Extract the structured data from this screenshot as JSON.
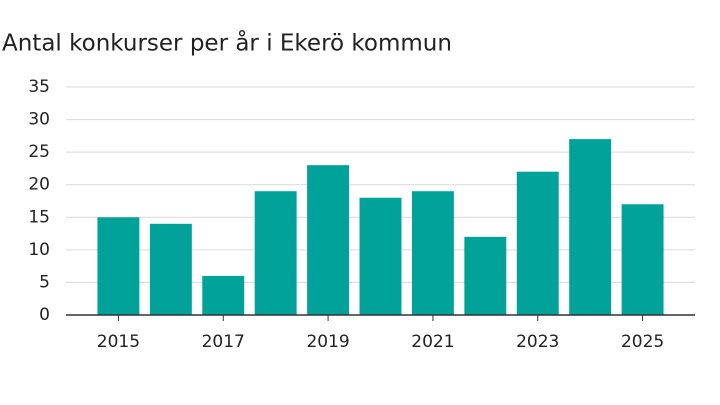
{
  "chart_data": {
    "type": "bar",
    "title": "Antal konkurser per år i Ekerö kommun",
    "x": [
      2015,
      2016,
      2017,
      2018,
      2019,
      2020,
      2021,
      2022,
      2023,
      2024,
      2025
    ],
    "values": [
      15,
      14,
      6,
      19,
      23,
      18,
      19,
      12,
      22,
      27,
      17
    ],
    "color": "#00a29a",
    "xlim": [
      2014,
      2026
    ],
    "xticks": [
      2015,
      2017,
      2019,
      2021,
      2023,
      2025
    ],
    "ylim": [
      0,
      35
    ],
    "yticks": [
      0,
      5,
      10,
      15,
      20,
      25,
      30,
      35
    ],
    "grid": true
  }
}
